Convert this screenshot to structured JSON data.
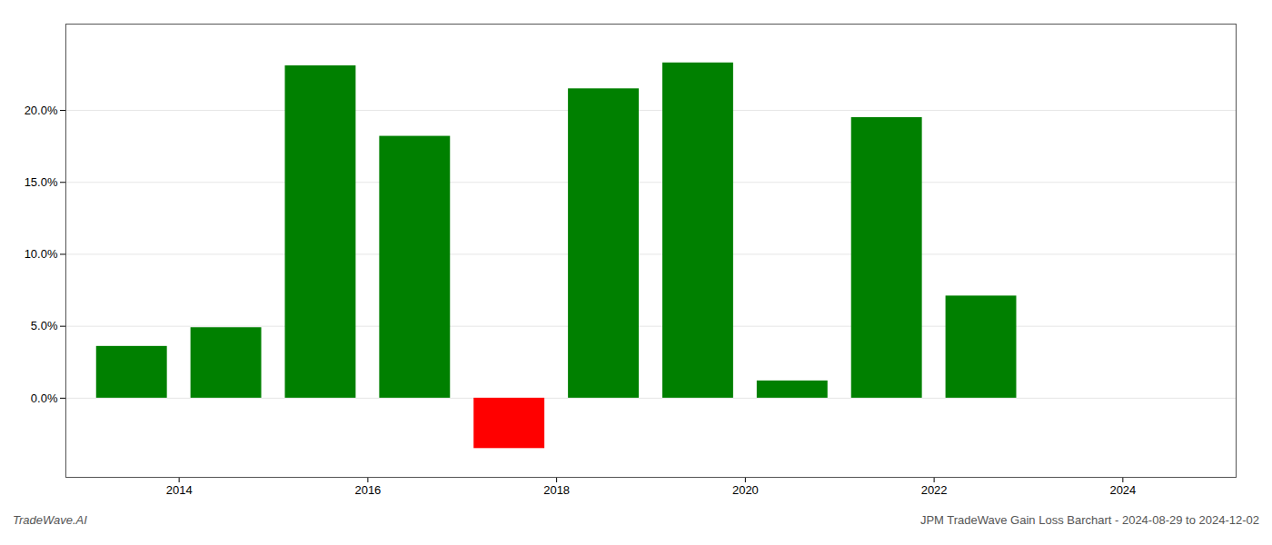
{
  "chart_data": {
    "type": "bar",
    "x": [
      2013.5,
      2014.5,
      2015.5,
      2016.5,
      2017.5,
      2018.5,
      2019.5,
      2020.5,
      2021.5,
      2022.5,
      2023.5
    ],
    "values": [
      3.6,
      4.9,
      23.1,
      18.2,
      -3.5,
      21.5,
      23.3,
      1.2,
      19.5,
      7.1,
      0.0
    ],
    "colors": [
      "#008000",
      "#008000",
      "#008000",
      "#008000",
      "#ff0000",
      "#008000",
      "#008000",
      "#008000",
      "#008000",
      "#008000",
      "#008000"
    ],
    "xlim": [
      2012.8,
      2025.2
    ],
    "xticks": [
      2014,
      2016,
      2018,
      2020,
      2022,
      2024
    ],
    "ylim": [
      -5.5,
      26
    ],
    "yticks": [
      {
        "value": 0.0,
        "label": "0.0%"
      },
      {
        "value": 5.0,
        "label": "5.0%"
      },
      {
        "value": 10.0,
        "label": "10.0%"
      },
      {
        "value": 15.0,
        "label": "15.0%"
      },
      {
        "value": 20.0,
        "label": "20.0%"
      }
    ],
    "grid": true,
    "annotations": [
      "TradeWave.AI",
      "JPM TradeWave Gain Loss Barchart - 2024-08-29 to 2024-12-02"
    ]
  }
}
